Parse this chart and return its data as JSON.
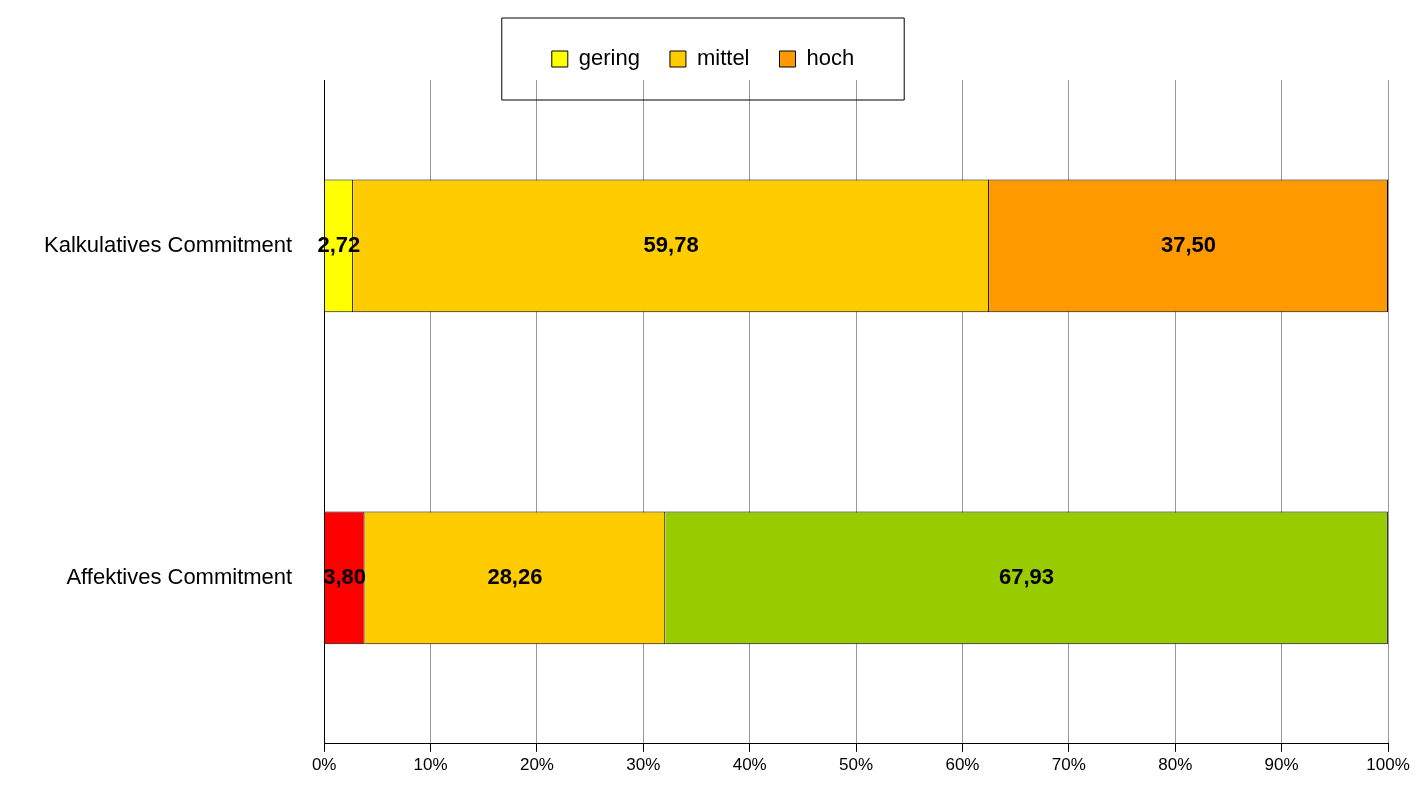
{
  "chart_data": {
    "type": "bar",
    "orientation": "horizontal",
    "stacked": true,
    "categories": [
      "Kalkulatives Commitment",
      "Affektives Commitment"
    ],
    "series": [
      {
        "name": "gering",
        "color": "#ffff00",
        "colors": [
          "#ffff00",
          "#ff0000"
        ],
        "values": [
          2.72,
          3.8
        ],
        "value_labels": [
          "2,72",
          "3,80"
        ]
      },
      {
        "name": "mittel",
        "color": "#ffcc00",
        "colors": [
          "#ffcc00",
          "#ffcc00"
        ],
        "values": [
          59.78,
          28.26
        ],
        "value_labels": [
          "59,78",
          "28,26"
        ]
      },
      {
        "name": "hoch",
        "color": "#ff9900",
        "colors": [
          "#ff9900",
          "#99cc00"
        ],
        "values": [
          37.5,
          67.93
        ],
        "value_labels": [
          "37,50",
          "67,93"
        ]
      }
    ],
    "xlim": [
      0,
      100
    ],
    "xticks": [
      {
        "value": 0,
        "label": "0%"
      },
      {
        "value": 10,
        "label": "10%"
      },
      {
        "value": 20,
        "label": "20%"
      },
      {
        "value": 30,
        "label": "30%"
      },
      {
        "value": 40,
        "label": "40%"
      },
      {
        "value": 50,
        "label": "50%"
      },
      {
        "value": 60,
        "label": "60%"
      },
      {
        "value": 70,
        "label": "70%"
      },
      {
        "value": 80,
        "label": "80%"
      },
      {
        "value": 90,
        "label": "90%"
      },
      {
        "value": 100,
        "label": "100%"
      }
    ],
    "grid": "x",
    "legend": "top"
  }
}
